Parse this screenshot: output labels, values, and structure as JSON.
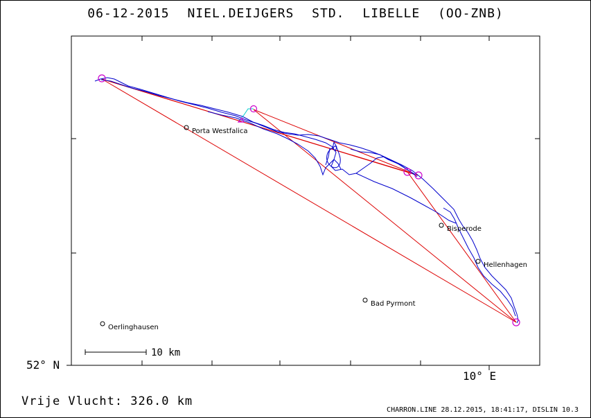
{
  "header": {
    "title": "06-12-2015   NIEL.DEIJGERS   STD. LIBELLE (OO-ZNB)"
  },
  "map": {
    "lat_label": "52° N",
    "lon_label": "10° E",
    "scale_label": "10 km",
    "places": [
      {
        "name": "Porta Westfalica"
      },
      {
        "name": "Bisperode"
      },
      {
        "name": "Hellenhagen"
      },
      {
        "name": "Bad Pyrmont"
      },
      {
        "name": "Oerlinghausen"
      }
    ],
    "colors": {
      "track": "#0000cc",
      "task_lines": "#dd0000",
      "turnpoints": "#cc00cc",
      "climb": "#00cccc"
    }
  },
  "footer": {
    "distance": "Vrije Vlucht:  326.0 km",
    "credits": "CHARRON.LINE 28.12.2015, 18:41:17, DISLIN 10.3"
  }
}
